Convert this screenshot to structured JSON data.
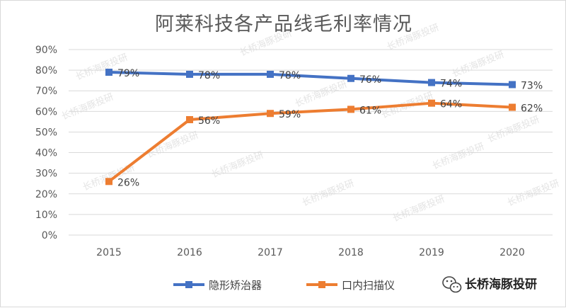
{
  "chart_data": {
    "type": "line",
    "title": "阿莱科技各产品线毛利率情况",
    "categories": [
      "2015",
      "2016",
      "2017",
      "2018",
      "2019",
      "2020"
    ],
    "y_ticks": [
      "0%",
      "10%",
      "20%",
      "30%",
      "40%",
      "50%",
      "60%",
      "70%",
      "80%",
      "90%"
    ],
    "ylim": [
      0,
      90
    ],
    "grid": true,
    "legend_position": "bottom",
    "series": [
      {
        "name": "隐形矫治器",
        "color": "#4472C4",
        "values": [
          79,
          78,
          78,
          76,
          74,
          73
        ],
        "labels": [
          "79%",
          "78%",
          "78%",
          "76%",
          "74%",
          "73%"
        ]
      },
      {
        "name": "口内扫描仪",
        "color": "#ED7D31",
        "values": [
          26,
          56,
          59,
          61,
          64,
          62
        ],
        "labels": [
          "26%",
          "56%",
          "59%",
          "61%",
          "64%",
          "62%"
        ]
      }
    ]
  },
  "branding": {
    "icon": "wechat-icon",
    "account_name": "长桥海豚投研",
    "watermark_text": "长桥海豚投研"
  }
}
